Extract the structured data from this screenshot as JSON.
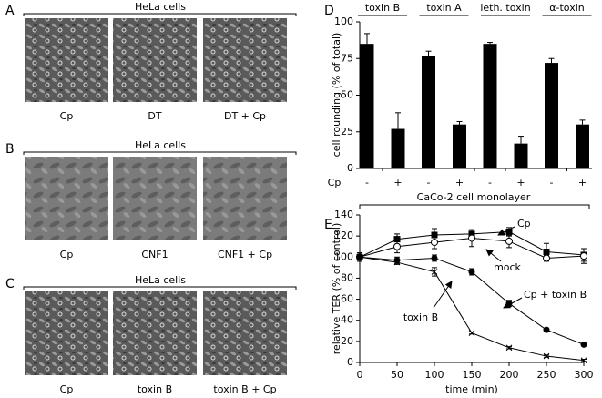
{
  "panels": [
    {
      "label": "A",
      "header": "HeLa cells",
      "captions": [
        "Cp",
        "DT",
        "DT + Cp"
      ]
    },
    {
      "label": "B",
      "header": "HeLa cells",
      "captions": [
        "Cp",
        "CNF1",
        "CNF1 + Cp"
      ]
    },
    {
      "label": "C",
      "header": "HeLa cells",
      "captions": [
        "Cp",
        "toxin B",
        "toxin B + Cp"
      ]
    }
  ],
  "chart_data": [
    {
      "type": "bar",
      "label": "D",
      "ylabel": "cell rounding (% of total)",
      "xlabel": "Cp",
      "groups": [
        "toxin B",
        "toxin A",
        "leth. toxin",
        "α-toxin"
      ],
      "categories": [
        "-",
        "+",
        "-",
        "+",
        "-",
        "+",
        "-",
        "+"
      ],
      "values": [
        85,
        27,
        77,
        30,
        85,
        17,
        72,
        30
      ],
      "errors": [
        7,
        11,
        3,
        2,
        1,
        5,
        3,
        3
      ],
      "color": "#000000",
      "ylim": [
        0,
        100
      ],
      "yticks": [
        0,
        25,
        50,
        75,
        100
      ]
    },
    {
      "type": "line",
      "label": "E",
      "title": "CaCo-2 cell monolayer",
      "xlabel": "time (min)",
      "ylabel": "relative TER (% of control)",
      "x": [
        0,
        50,
        100,
        150,
        200,
        250,
        300
      ],
      "series": [
        {
          "name": "Cp",
          "marker": "square",
          "color": "#000000",
          "values": [
            100,
            117,
            121,
            122,
            124,
            105,
            102
          ],
          "errors": [
            4,
            5,
            6,
            4,
            4,
            8,
            6
          ]
        },
        {
          "name": "mock",
          "marker": "circle-open",
          "color": "#000000",
          "values": [
            100,
            110,
            114,
            118,
            115,
            99,
            101
          ],
          "errors": [
            4,
            6,
            6,
            8,
            6,
            3,
            7
          ]
        },
        {
          "name": "Cp + toxin B",
          "marker": "circle",
          "color": "#000000",
          "values": [
            100,
            97,
            99,
            86,
            56,
            31,
            17
          ],
          "errors": [
            2,
            3,
            3,
            3,
            3,
            1,
            1
          ]
        },
        {
          "name": "toxin B",
          "marker": "x",
          "color": "#000000",
          "values": [
            100,
            95,
            86,
            28,
            14,
            6,
            2
          ],
          "errors": [
            2,
            2,
            4,
            1,
            1,
            1,
            1
          ]
        }
      ],
      "xlim": [
        0,
        300
      ],
      "xticks": [
        0,
        50,
        100,
        150,
        200,
        250,
        300
      ],
      "ylim": [
        0,
        140
      ],
      "yticks": [
        0,
        20,
        40,
        60,
        80,
        100,
        120,
        140
      ]
    }
  ]
}
